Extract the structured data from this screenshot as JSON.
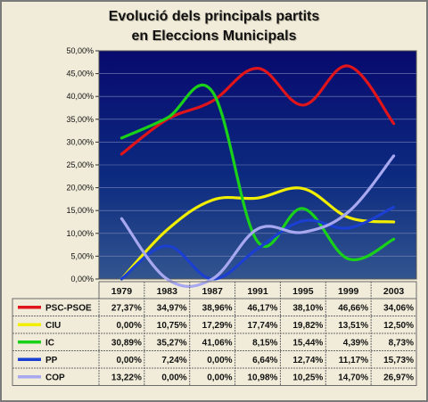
{
  "chart_data": {
    "type": "line",
    "title": [
      "Evolució dels principals partits",
      "en Eleccions Municipals"
    ],
    "categories": [
      "1979",
      "1983",
      "1987",
      "1991",
      "1995",
      "1999",
      "2003"
    ],
    "ylim": [
      0,
      50
    ],
    "yticks": [
      "0,00%",
      "5,00%",
      "10,00%",
      "15,00%",
      "20,00%",
      "25,00%",
      "30,00%",
      "35,00%",
      "40,00%",
      "45,00%",
      "50,00%"
    ],
    "grid": true,
    "legend": "data-table",
    "series": [
      {
        "name": "PSC-PSOE",
        "color": "#e0141b",
        "values": [
          27.37,
          34.97,
          38.96,
          46.17,
          38.1,
          46.66,
          34.06
        ],
        "labels": [
          "27,37%",
          "34,97%",
          "38,96%",
          "46,17%",
          "38,10%",
          "46,66%",
          "34,06%"
        ]
      },
      {
        "name": "CIU",
        "color": "#f2ee00",
        "values": [
          0.0,
          10.75,
          17.29,
          17.74,
          19.82,
          13.51,
          12.5
        ],
        "labels": [
          "0,00%",
          "10,75%",
          "17,29%",
          "17,74%",
          "19,82%",
          "13,51%",
          "12,50%"
        ]
      },
      {
        "name": "IC",
        "color": "#1ad11a",
        "values": [
          30.89,
          35.27,
          41.06,
          8.15,
          15.44,
          4.39,
          8.73
        ],
        "labels": [
          "30,89%",
          "35,27%",
          "41,06%",
          "8,15%",
          "15,44%",
          "4,39%",
          "8,73%"
        ]
      },
      {
        "name": "PP",
        "color": "#1b3fd1",
        "values": [
          0.0,
          7.24,
          0.0,
          6.64,
          12.74,
          11.17,
          15.73
        ],
        "labels": [
          "0,00%",
          "7,24%",
          "0,00%",
          "6,64%",
          "12,74%",
          "11,17%",
          "15,73%"
        ]
      },
      {
        "name": "COP",
        "color": "#a8a8f0",
        "values": [
          13.22,
          0.0,
          0.0,
          10.98,
          10.25,
          14.7,
          26.97
        ],
        "labels": [
          "13,22%",
          "0,00%",
          "0,00%",
          "10,98%",
          "10,25%",
          "14,70%",
          "26,97%"
        ]
      }
    ]
  }
}
